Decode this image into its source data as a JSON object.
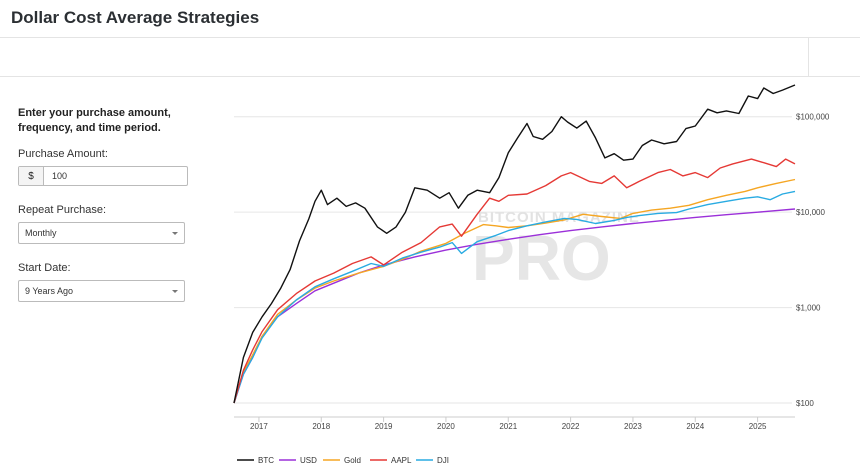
{
  "page_title": "Dollar Cost Average Strategies",
  "form": {
    "intro": "Enter your purchase amount, frequency, and time period.",
    "purchase_amount_label": "Purchase Amount:",
    "currency_symbol": "$",
    "purchase_amount_value": "100",
    "repeat_label": "Repeat Purchase:",
    "repeat_value": "Monthly",
    "start_label": "Start Date:",
    "start_value": "9 Years Ago"
  },
  "chart_data": {
    "type": "line",
    "y_scale": "log",
    "ylim": [
      100,
      200000
    ],
    "xlim": [
      2016.6,
      2025.6
    ],
    "x_ticks": [
      2017,
      2018,
      2019,
      2020,
      2021,
      2022,
      2023,
      2024,
      2025
    ],
    "x_tick_labels": [
      "2017",
      "2018",
      "2019",
      "2020",
      "2021",
      "2022",
      "2023",
      "2024",
      "2025"
    ],
    "y_ticks": [
      100,
      1000,
      10000,
      100000
    ],
    "y_tick_labels": [
      "$100",
      "$1,000",
      "$10,000",
      "$100,000"
    ],
    "watermark": [
      "BITCOIN MAGAZINE",
      "PRO"
    ],
    "series": [
      {
        "name": "BTC",
        "color": "#111111",
        "points": [
          [
            2016.6,
            100
          ],
          [
            2016.75,
            300
          ],
          [
            2016.9,
            550
          ],
          [
            2017.05,
            800
          ],
          [
            2017.2,
            1100
          ],
          [
            2017.35,
            1600
          ],
          [
            2017.5,
            2500
          ],
          [
            2017.65,
            5000
          ],
          [
            2017.8,
            8500
          ],
          [
            2017.9,
            13000
          ],
          [
            2018.0,
            17000
          ],
          [
            2018.1,
            12000
          ],
          [
            2018.25,
            14000
          ],
          [
            2018.4,
            11500
          ],
          [
            2018.55,
            12500
          ],
          [
            2018.7,
            11000
          ],
          [
            2018.9,
            7000
          ],
          [
            2019.05,
            6000
          ],
          [
            2019.2,
            7000
          ],
          [
            2019.35,
            10000
          ],
          [
            2019.5,
            18000
          ],
          [
            2019.7,
            17000
          ],
          [
            2019.9,
            14000
          ],
          [
            2020.05,
            16000
          ],
          [
            2020.2,
            11000
          ],
          [
            2020.35,
            15000
          ],
          [
            2020.5,
            17000
          ],
          [
            2020.7,
            16000
          ],
          [
            2020.85,
            23000
          ],
          [
            2021.0,
            42000
          ],
          [
            2021.15,
            60000
          ],
          [
            2021.3,
            85000
          ],
          [
            2021.4,
            62000
          ],
          [
            2021.55,
            58000
          ],
          [
            2021.7,
            70000
          ],
          [
            2021.85,
            100000
          ],
          [
            2021.95,
            88000
          ],
          [
            2022.1,
            76000
          ],
          [
            2022.25,
            90000
          ],
          [
            2022.4,
            60000
          ],
          [
            2022.55,
            37000
          ],
          [
            2022.7,
            41000
          ],
          [
            2022.85,
            35000
          ],
          [
            2023.0,
            36000
          ],
          [
            2023.15,
            50000
          ],
          [
            2023.3,
            57000
          ],
          [
            2023.5,
            52000
          ],
          [
            2023.7,
            55000
          ],
          [
            2023.85,
            75000
          ],
          [
            2024.0,
            80000
          ],
          [
            2024.2,
            120000
          ],
          [
            2024.35,
            110000
          ],
          [
            2024.5,
            115000
          ],
          [
            2024.7,
            108000
          ],
          [
            2024.85,
            165000
          ],
          [
            2025.0,
            155000
          ],
          [
            2025.1,
            200000
          ],
          [
            2025.25,
            175000
          ],
          [
            2025.4,
            190000
          ],
          [
            2025.6,
            215000
          ]
        ]
      },
      {
        "name": "USD",
        "color": "#9b30d9",
        "points": [
          [
            2016.6,
            100
          ],
          [
            2016.75,
            200
          ],
          [
            2016.9,
            300
          ],
          [
            2017.05,
            500
          ],
          [
            2017.3,
            800
          ],
          [
            2017.6,
            1100
          ],
          [
            2017.9,
            1500
          ],
          [
            2018.2,
            1800
          ],
          [
            2018.6,
            2300
          ],
          [
            2019.0,
            2800
          ],
          [
            2019.5,
            3400
          ],
          [
            2020.0,
            4000
          ],
          [
            2020.5,
            4600
          ],
          [
            2021.0,
            5200
          ],
          [
            2021.5,
            5800
          ],
          [
            2022.0,
            6400
          ],
          [
            2022.5,
            7000
          ],
          [
            2023.0,
            7600
          ],
          [
            2023.5,
            8200
          ],
          [
            2024.0,
            8800
          ],
          [
            2024.5,
            9400
          ],
          [
            2025.0,
            10000
          ],
          [
            2025.6,
            10800
          ]
        ]
      },
      {
        "name": "Gold",
        "color": "#f5a623",
        "points": [
          [
            2016.6,
            100
          ],
          [
            2016.75,
            210
          ],
          [
            2016.9,
            320
          ],
          [
            2017.05,
            500
          ],
          [
            2017.3,
            850
          ],
          [
            2017.6,
            1200
          ],
          [
            2017.9,
            1600
          ],
          [
            2018.2,
            1900
          ],
          [
            2018.6,
            2300
          ],
          [
            2019.0,
            2700
          ],
          [
            2019.3,
            3200
          ],
          [
            2019.6,
            3900
          ],
          [
            2020.0,
            4700
          ],
          [
            2020.3,
            6000
          ],
          [
            2020.6,
            7400
          ],
          [
            2020.8,
            7200
          ],
          [
            2021.0,
            6900
          ],
          [
            2021.3,
            7200
          ],
          [
            2021.6,
            7700
          ],
          [
            2021.9,
            8300
          ],
          [
            2022.2,
            9500
          ],
          [
            2022.5,
            9000
          ],
          [
            2022.8,
            8600
          ],
          [
            2023.0,
            9700
          ],
          [
            2023.3,
            10500
          ],
          [
            2023.6,
            11000
          ],
          [
            2023.9,
            11800
          ],
          [
            2024.2,
            13500
          ],
          [
            2024.5,
            15000
          ],
          [
            2024.8,
            16500
          ],
          [
            2025.0,
            18000
          ],
          [
            2025.3,
            20000
          ],
          [
            2025.6,
            22000
          ]
        ]
      },
      {
        "name": "AAPL",
        "color": "#e53935",
        "points": [
          [
            2016.6,
            100
          ],
          [
            2016.75,
            220
          ],
          [
            2016.9,
            360
          ],
          [
            2017.05,
            560
          ],
          [
            2017.3,
            950
          ],
          [
            2017.6,
            1400
          ],
          [
            2017.9,
            1900
          ],
          [
            2018.2,
            2300
          ],
          [
            2018.5,
            2900
          ],
          [
            2018.8,
            3400
          ],
          [
            2019.0,
            2800
          ],
          [
            2019.3,
            3800
          ],
          [
            2019.6,
            4800
          ],
          [
            2019.9,
            7000
          ],
          [
            2020.1,
            7500
          ],
          [
            2020.25,
            5600
          ],
          [
            2020.5,
            9500
          ],
          [
            2020.7,
            14000
          ],
          [
            2020.85,
            13000
          ],
          [
            2021.0,
            15000
          ],
          [
            2021.3,
            15500
          ],
          [
            2021.6,
            19000
          ],
          [
            2021.85,
            24000
          ],
          [
            2022.0,
            26000
          ],
          [
            2022.3,
            21000
          ],
          [
            2022.5,
            20000
          ],
          [
            2022.7,
            24000
          ],
          [
            2022.9,
            18000
          ],
          [
            2023.1,
            21000
          ],
          [
            2023.4,
            26000
          ],
          [
            2023.6,
            28000
          ],
          [
            2023.8,
            24000
          ],
          [
            2024.0,
            26000
          ],
          [
            2024.2,
            23000
          ],
          [
            2024.4,
            29000
          ],
          [
            2024.6,
            32000
          ],
          [
            2024.9,
            36000
          ],
          [
            2025.1,
            33000
          ],
          [
            2025.3,
            30000
          ],
          [
            2025.45,
            36000
          ],
          [
            2025.6,
            32000
          ]
        ]
      },
      {
        "name": "DJI",
        "color": "#29abe2",
        "points": [
          [
            2016.6,
            100
          ],
          [
            2016.75,
            200
          ],
          [
            2016.9,
            300
          ],
          [
            2017.05,
            480
          ],
          [
            2017.3,
            800
          ],
          [
            2017.6,
            1200
          ],
          [
            2017.9,
            1650
          ],
          [
            2018.2,
            2000
          ],
          [
            2018.5,
            2400
          ],
          [
            2018.8,
            2900
          ],
          [
            2019.0,
            2700
          ],
          [
            2019.3,
            3300
          ],
          [
            2019.6,
            3800
          ],
          [
            2019.9,
            4300
          ],
          [
            2020.1,
            4800
          ],
          [
            2020.25,
            3700
          ],
          [
            2020.5,
            4900
          ],
          [
            2020.8,
            5700
          ],
          [
            2021.0,
            6400
          ],
          [
            2021.3,
            7200
          ],
          [
            2021.6,
            7900
          ],
          [
            2021.9,
            8600
          ],
          [
            2022.1,
            8400
          ],
          [
            2022.4,
            7600
          ],
          [
            2022.7,
            8200
          ],
          [
            2022.9,
            8800
          ],
          [
            2023.1,
            9200
          ],
          [
            2023.4,
            9700
          ],
          [
            2023.7,
            9900
          ],
          [
            2023.9,
            10800
          ],
          [
            2024.2,
            12000
          ],
          [
            2024.5,
            13000
          ],
          [
            2024.8,
            14000
          ],
          [
            2025.0,
            14500
          ],
          [
            2025.2,
            13500
          ],
          [
            2025.4,
            15500
          ],
          [
            2025.6,
            16500
          ]
        ]
      }
    ]
  }
}
